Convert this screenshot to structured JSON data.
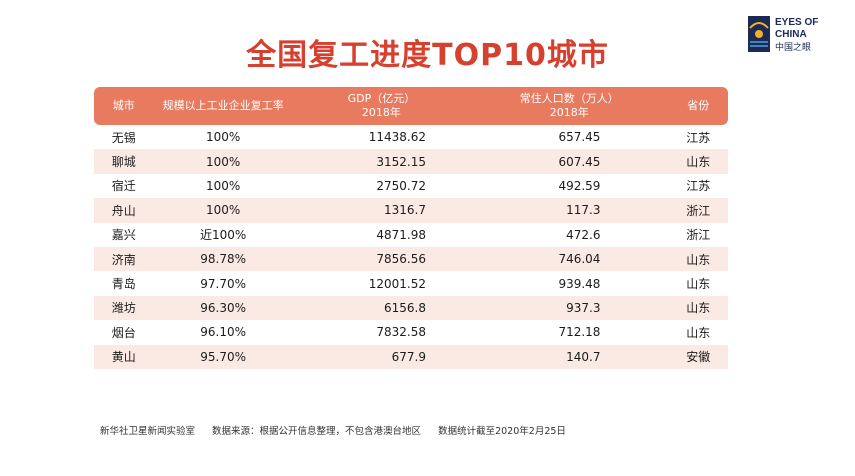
{
  "title": "全国复工进度TOP10城市",
  "logo": {
    "line1": "EYES OF",
    "line2": "CHINA",
    "line3": "中国之眼"
  },
  "table": {
    "headers": [
      {
        "line1": "城市",
        "line2": ""
      },
      {
        "line1": "规模以上工业企业复工率",
        "line2": ""
      },
      {
        "line1": "GDP（亿元）",
        "line2": "2018年"
      },
      {
        "line1": "常住人口数（万人）",
        "line2": "2018年"
      },
      {
        "line1": "省份",
        "line2": ""
      }
    ],
    "rows": [
      [
        "无锡",
        "100%",
        "11438.62",
        "657.45",
        "江苏"
      ],
      [
        "聊城",
        "100%",
        "3152.15",
        "607.45",
        "山东"
      ],
      [
        "宿迁",
        "100%",
        "2750.72",
        "492.59",
        "江苏"
      ],
      [
        "舟山",
        "100%",
        "1316.7",
        "117.3",
        "浙江"
      ],
      [
        "嘉兴",
        "近100%",
        "4871.98",
        "472.6",
        "浙江"
      ],
      [
        "济南",
        "98.78%",
        "7856.56",
        "746.04",
        "山东"
      ],
      [
        "青岛",
        "97.70%",
        "12001.52",
        "939.48",
        "山东"
      ],
      [
        "潍坊",
        "96.30%",
        "6156.8",
        "937.3",
        "山东"
      ],
      [
        "烟台",
        "96.10%",
        "7832.58",
        "712.18",
        "山东"
      ],
      [
        "黄山",
        "95.70%",
        "677.9",
        "140.7",
        "安徽"
      ]
    ]
  },
  "footer": {
    "org": "新华社卫星新闻实验室",
    "source": "数据来源：根据公开信息整理，不包含港澳台地区",
    "cutoff": "数据统计截至2020年2月25日"
  },
  "colors": {
    "title": "#d6402e",
    "header_bg": "#e87a60",
    "row_alt": "#fbeae4"
  }
}
